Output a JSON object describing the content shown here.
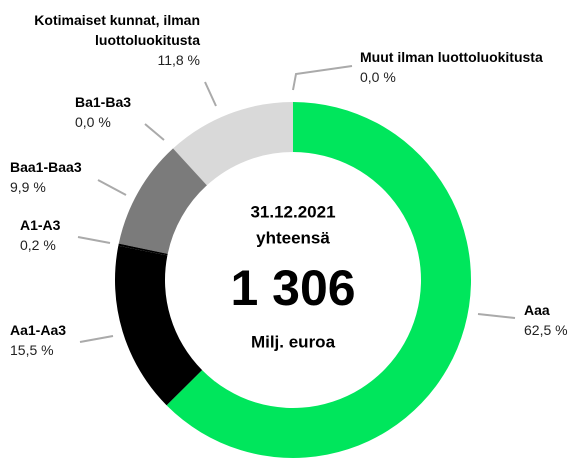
{
  "chart_data": {
    "type": "donut",
    "categories": [
      "Aaa",
      "Aa1-Aa3",
      "A1-A3",
      "Baa1-Baa3",
      "Ba1-Ba3",
      "Kotimaiset kunnat, ilman luottoluokitusta",
      "Muut ilman luottoluokitusta"
    ],
    "values": [
      62.5,
      15.5,
      0.2,
      9.9,
      0.0,
      11.8,
      0.0
    ],
    "value_labels": [
      "62,5 %",
      "15,5 %",
      "0,2 %",
      "9,9 %",
      "0,0 %",
      "11,8 %",
      "0,0 %"
    ],
    "colors": [
      "#00e65c",
      "#000000",
      "#000000",
      "#7b7b7b",
      "#7b7b7b",
      "#d9d9d9",
      "#d9d9d9"
    ],
    "center": {
      "date": "31.12.2021",
      "subtitle": "yhteensä",
      "total": "1 306",
      "unit": "Milj. euroa"
    }
  }
}
